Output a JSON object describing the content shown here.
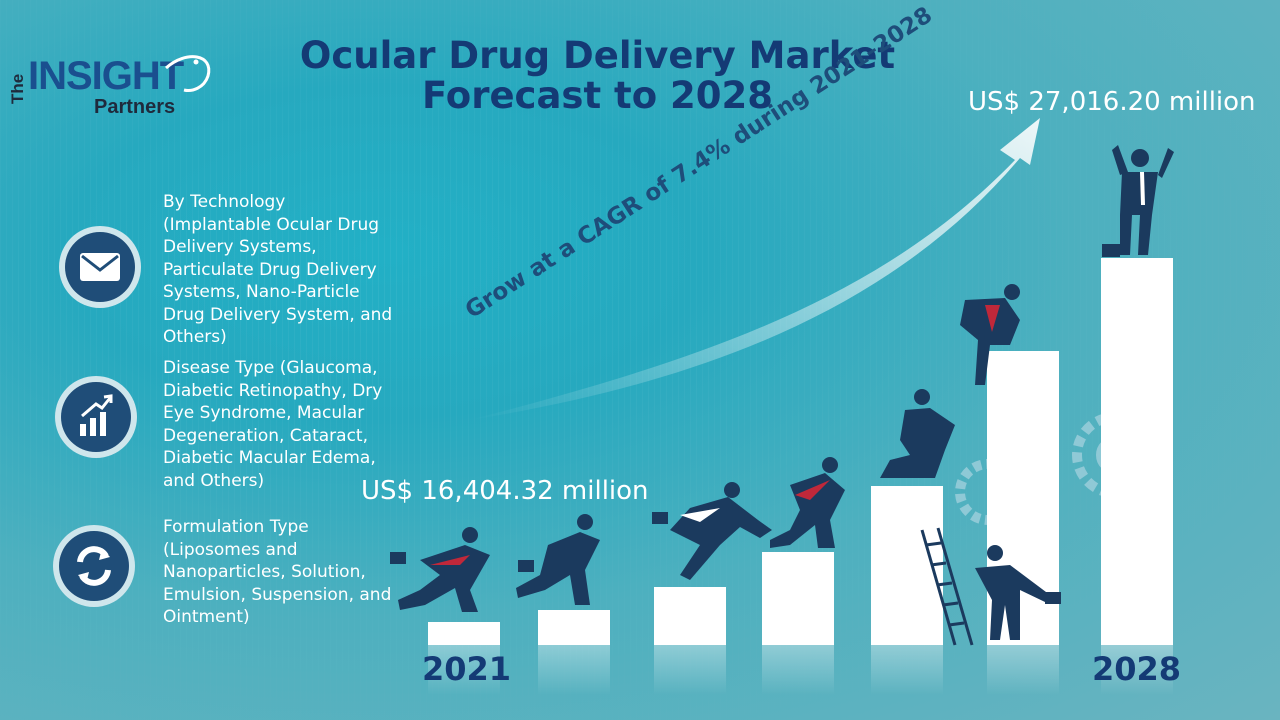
{
  "brand": {
    "the": "The",
    "insight": "INSIGHT",
    "partners": "Partners"
  },
  "title": "Ocular Drug Delivery Market Forecast to 2028",
  "segments": [
    {
      "icon": "envelope-icon",
      "text": "By Technology (Implantable Ocular Drug Delivery Systems, Particulate Drug Delivery Systems, Nano-Particle Drug Delivery System, and Others)"
    },
    {
      "icon": "growth-chart-icon",
      "text": "Disease Type (Glaucoma, Diabetic Retinopathy, Dry Eye Syndrome, Macular Degeneration, Cataract, Diabetic Macular Edema, and Others)"
    },
    {
      "icon": "cycle-arrows-icon",
      "text": "Formulation Type (Liposomes and Nanoparticles, Solution, Emulsion, Suspension, and Ointment)"
    }
  ],
  "start_value": "US$ 16,404.32 million",
  "end_value": "US$ 27,016.20 million",
  "cagr": "Grow at a CAGR of 7.4% during 2021–2028",
  "years": {
    "start": "2021",
    "end": "2028"
  },
  "chart_data": {
    "type": "bar",
    "relative_heights": [
      0.06,
      0.09,
      0.15,
      0.24,
      0.41,
      0.76,
      1.0
    ]
  },
  "colors": {
    "navy": "#143a75",
    "figure": "#1b3a5e",
    "tie_red": "#c0283a",
    "bar": "#ffffff"
  }
}
